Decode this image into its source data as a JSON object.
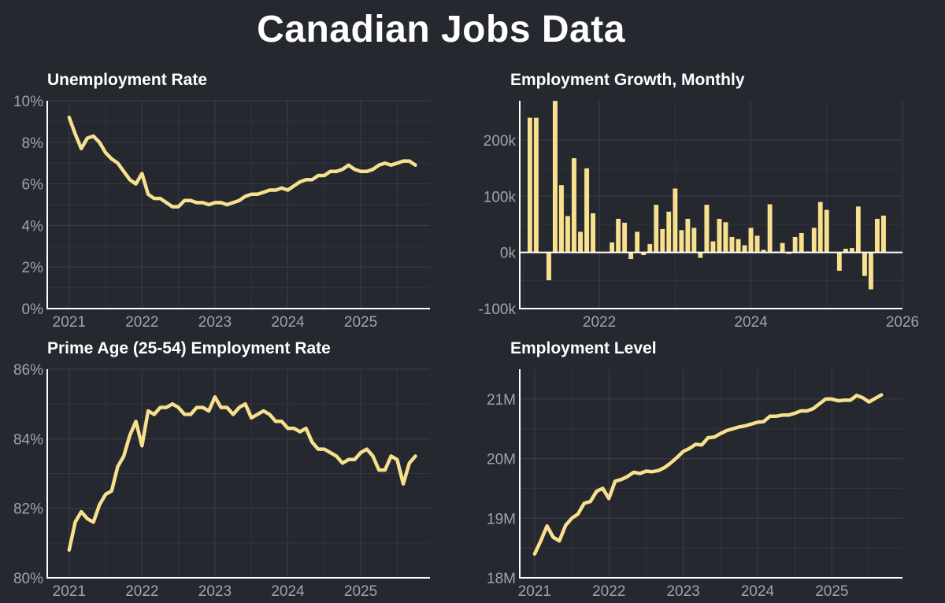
{
  "title": "Canadian Jobs Data",
  "colors": {
    "background": "#262830",
    "series": "#f7e08e",
    "grid": "#3b3e49",
    "axis": "#ffffff",
    "tick_text": "#a0a3ab"
  },
  "chart_data": [
    {
      "id": "unemployment",
      "type": "line",
      "title": "Unemployment Rate",
      "xlabel": "",
      "ylabel": "",
      "x_ticks": [
        {
          "x": 2021,
          "label": "2021"
        },
        {
          "x": 2022,
          "label": "2022"
        },
        {
          "x": 2023,
          "label": "2023"
        },
        {
          "x": 2024,
          "label": "2024"
        },
        {
          "x": 2025,
          "label": "2025"
        }
      ],
      "y_ticks": [
        {
          "y": 0,
          "label": "0%"
        },
        {
          "y": 2,
          "label": "2%"
        },
        {
          "y": 4,
          "label": "4%"
        },
        {
          "y": 6,
          "label": "6%"
        },
        {
          "y": 8,
          "label": "8%"
        },
        {
          "y": 10,
          "label": "10%"
        }
      ],
      "xlim": [
        2020.7,
        2025.95
      ],
      "ylim": [
        0,
        10
      ],
      "grid": true,
      "x_start": 2021.0,
      "x_step": 0.0833333,
      "values": [
        9.2,
        8.4,
        7.7,
        8.2,
        8.3,
        8.0,
        7.5,
        7.2,
        7.0,
        6.6,
        6.2,
        6.0,
        6.5,
        5.5,
        5.3,
        5.3,
        5.1,
        4.9,
        4.9,
        5.2,
        5.2,
        5.1,
        5.1,
        5.0,
        5.1,
        5.1,
        5.0,
        5.1,
        5.2,
        5.4,
        5.5,
        5.5,
        5.6,
        5.7,
        5.7,
        5.8,
        5.7,
        5.9,
        6.1,
        6.2,
        6.2,
        6.4,
        6.4,
        6.6,
        6.6,
        6.7,
        6.9,
        6.7,
        6.6,
        6.6,
        6.7,
        6.9,
        7.0,
        6.9,
        7.0,
        7.1,
        7.1,
        6.9
      ]
    },
    {
      "id": "growth",
      "type": "bar",
      "title": "Employment Growth, Monthly",
      "xlabel": "",
      "ylabel": "",
      "x_ticks": [
        {
          "x": 2022,
          "label": "2022"
        },
        {
          "x": 2024,
          "label": "2024"
        },
        {
          "x": 2026,
          "label": "2026"
        }
      ],
      "y_ticks": [
        {
          "y": -100000,
          "label": "-100k"
        },
        {
          "y": 0,
          "label": "0k"
        },
        {
          "y": 100000,
          "label": "100k"
        },
        {
          "y": 200000,
          "label": "200k"
        }
      ],
      "xlim": [
        2020.95,
        2026.0
      ],
      "ylim": [
        -100000,
        270000
      ],
      "grid": true,
      "x_start": 2021.0833,
      "x_step": 0.0833333,
      "values": [
        240000,
        240000,
        0,
        -50000,
        270000,
        120000,
        65000,
        168000,
        37000,
        150000,
        70000,
        0,
        0,
        18000,
        60000,
        53000,
        -12000,
        37000,
        -5000,
        15000,
        85000,
        42000,
        73000,
        114000,
        40000,
        60000,
        44000,
        -10000,
        85000,
        20000,
        60000,
        54000,
        28000,
        24000,
        13000,
        44000,
        30000,
        5000,
        86000,
        2000,
        17000,
        -3000,
        28000,
        35000,
        2000,
        44000,
        90000,
        76000,
        0,
        -33000,
        7000,
        8000,
        82000,
        -42000,
        -66000,
        60000,
        66000
      ]
    },
    {
      "id": "prime_age",
      "type": "line",
      "title": "Prime Age (25-54) Employment Rate",
      "xlabel": "",
      "ylabel": "",
      "x_ticks": [
        {
          "x": 2021,
          "label": "2021"
        },
        {
          "x": 2022,
          "label": "2022"
        },
        {
          "x": 2023,
          "label": "2023"
        },
        {
          "x": 2024,
          "label": "2024"
        },
        {
          "x": 2025,
          "label": "2025"
        }
      ],
      "y_ticks": [
        {
          "y": 80,
          "label": "80%"
        },
        {
          "y": 82,
          "label": "82%"
        },
        {
          "y": 84,
          "label": "84%"
        },
        {
          "y": 86,
          "label": "86%"
        }
      ],
      "xlim": [
        2020.7,
        2025.95
      ],
      "ylim": [
        80,
        86
      ],
      "grid": true,
      "x_start": 2021.0,
      "x_step": 0.0833333,
      "values": [
        80.8,
        81.6,
        81.9,
        81.7,
        81.6,
        82.1,
        82.4,
        82.5,
        83.2,
        83.5,
        84.1,
        84.5,
        83.8,
        84.8,
        84.7,
        84.9,
        84.9,
        85.0,
        84.9,
        84.7,
        84.7,
        84.9,
        84.9,
        84.8,
        85.2,
        84.9,
        84.9,
        84.7,
        84.9,
        85.0,
        84.6,
        84.7,
        84.8,
        84.7,
        84.5,
        84.5,
        84.3,
        84.3,
        84.2,
        84.3,
        83.9,
        83.7,
        83.7,
        83.6,
        83.5,
        83.3,
        83.4,
        83.4,
        83.6,
        83.7,
        83.5,
        83.1,
        83.1,
        83.5,
        83.4,
        82.7,
        83.3,
        83.5
      ]
    },
    {
      "id": "level",
      "type": "line",
      "title": "Employment Level",
      "xlabel": "",
      "ylabel": "",
      "x_ticks": [
        {
          "x": 2021,
          "label": "2021"
        },
        {
          "x": 2022,
          "label": "2022"
        },
        {
          "x": 2023,
          "label": "2023"
        },
        {
          "x": 2024,
          "label": "2024"
        },
        {
          "x": 2025,
          "label": "2025"
        }
      ],
      "y_ticks": [
        {
          "y": 18,
          "label": "18M"
        },
        {
          "y": 19,
          "label": "19M"
        },
        {
          "y": 20,
          "label": "20M"
        },
        {
          "y": 21,
          "label": "21M"
        }
      ],
      "xlim": [
        2020.8,
        2025.95
      ],
      "ylim": [
        18,
        21.5
      ],
      "grid": true,
      "x_start": 2021.0,
      "x_step": 0.0833333,
      "values": [
        18.4,
        18.62,
        18.87,
        18.68,
        18.62,
        18.88,
        19.0,
        19.07,
        19.25,
        19.28,
        19.45,
        19.5,
        19.33,
        19.62,
        19.65,
        19.7,
        19.77,
        19.75,
        19.79,
        19.78,
        19.8,
        19.85,
        19.93,
        20.02,
        20.12,
        20.17,
        20.24,
        20.23,
        20.35,
        20.36,
        20.42,
        20.47,
        20.5,
        20.53,
        20.55,
        20.58,
        20.61,
        20.62,
        20.71,
        20.71,
        20.73,
        20.73,
        20.76,
        20.8,
        20.8,
        20.84,
        20.92,
        21.0,
        21.0,
        20.97,
        20.98,
        20.98,
        21.06,
        21.02,
        20.95,
        21.01,
        21.07
      ]
    }
  ]
}
